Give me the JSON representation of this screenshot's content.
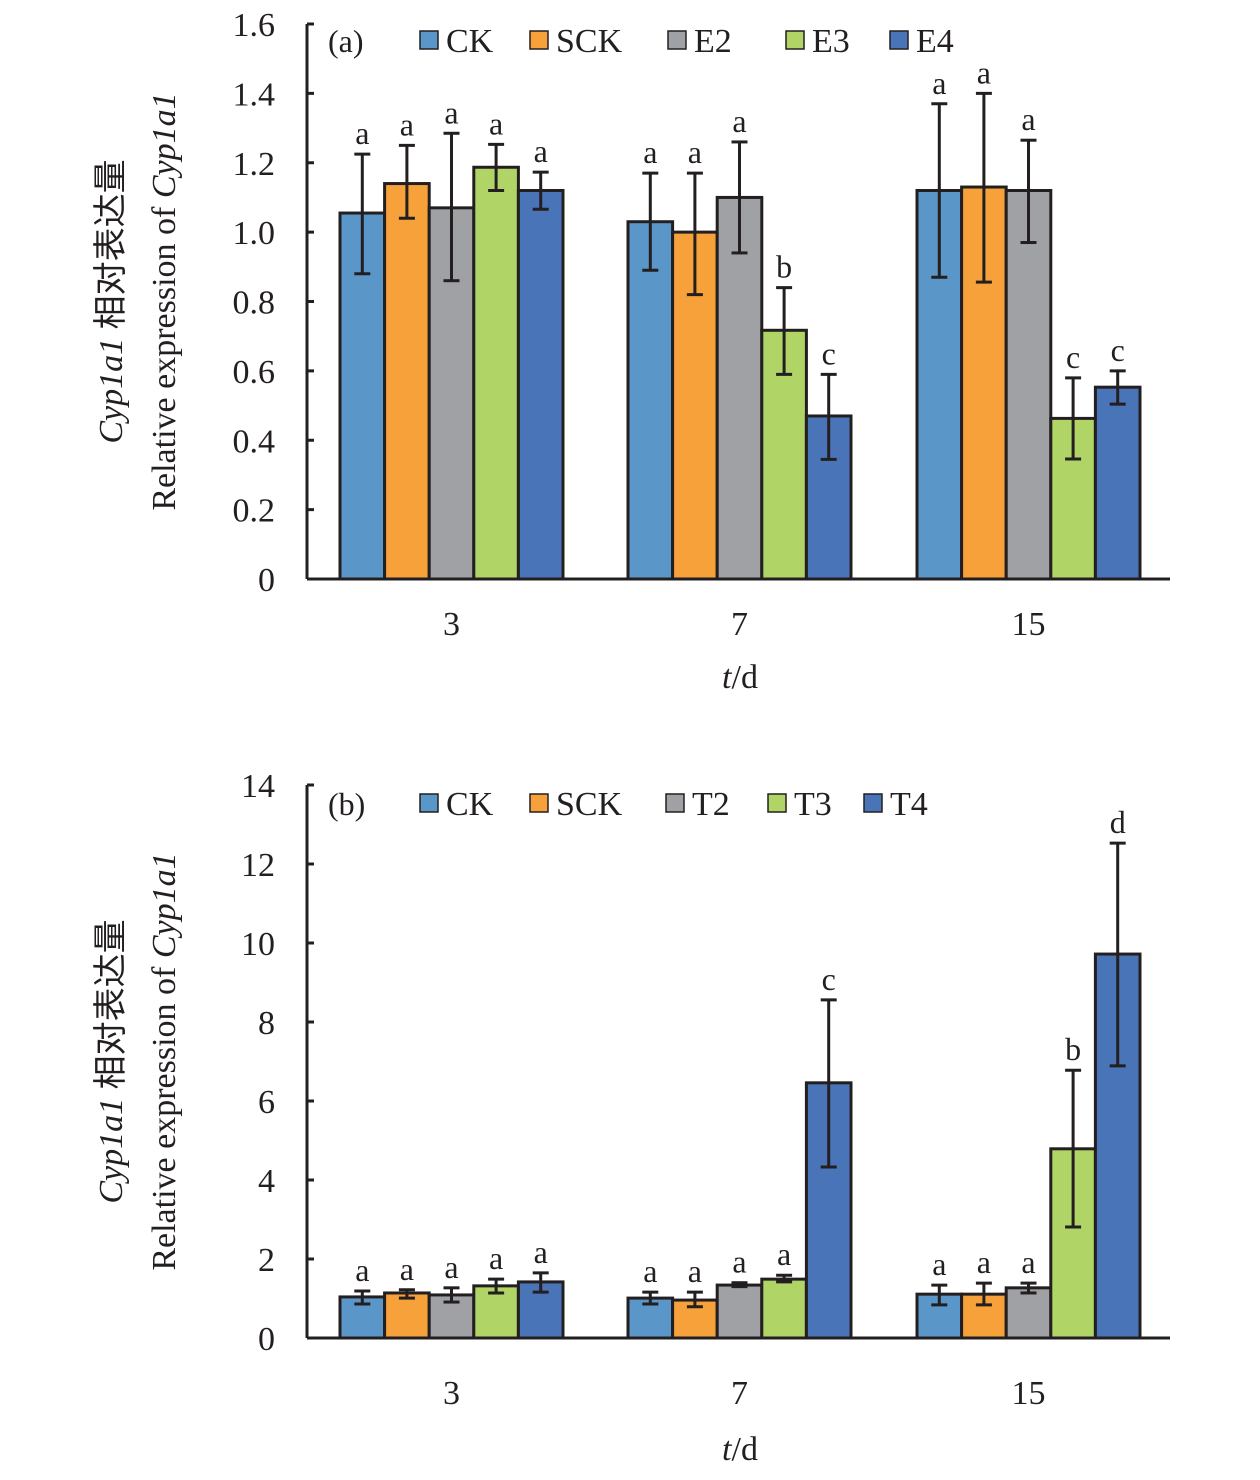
{
  "chart_data": [
    {
      "type": "bar",
      "panel_label": "(a)",
      "title": "",
      "xlabel_italic": "t",
      "xlabel_rest": "/d",
      "ylabel_line1_italic": "Cyp1a1",
      "ylabel_line1_rest": " 相对表达量",
      "ylabel_line2": "Relative expression of ",
      "ylabel_line2_italic": "Cyp1a1",
      "ylim": [
        0,
        1.6
      ],
      "yticks": [
        0,
        0.2,
        0.4,
        0.6,
        0.8,
        1.0,
        1.2,
        1.4,
        1.6
      ],
      "ytick_labels": [
        "0",
        "0.2",
        "0.4",
        "0.6",
        "0.8",
        "1.0",
        "1.2",
        "1.4",
        "1.6"
      ],
      "grid": false,
      "legend_position": "top",
      "categories": [
        "3",
        "7",
        "15"
      ],
      "series": [
        {
          "name": "CK",
          "color": "#5B96C8",
          "values": [
            1.055,
            1.03,
            1.12
          ],
          "err_low": [
            0.88,
            0.89,
            0.87
          ],
          "err_high": [
            1.225,
            1.17,
            1.37
          ],
          "letters": [
            "a",
            "a",
            "a"
          ]
        },
        {
          "name": "SCK",
          "color": "#F6A13A",
          "values": [
            1.14,
            1.0,
            1.13
          ],
          "err_low": [
            1.04,
            0.82,
            0.856
          ],
          "err_high": [
            1.25,
            1.17,
            1.4
          ],
          "letters": [
            "a",
            "a",
            "a"
          ]
        },
        {
          "name": "E2",
          "color": "#A0A1A5",
          "values": [
            1.07,
            1.1,
            1.12
          ],
          "err_low": [
            0.86,
            0.94,
            0.97
          ],
          "err_high": [
            1.285,
            1.26,
            1.265
          ],
          "letters": [
            "a",
            "a",
            "a"
          ]
        },
        {
          "name": "E3",
          "color": "#B0D465",
          "values": [
            1.187,
            0.717,
            0.463
          ],
          "err_low": [
            1.12,
            0.59,
            0.346
          ],
          "err_high": [
            1.253,
            0.84,
            0.58
          ],
          "letters": [
            "a",
            "b",
            "c"
          ]
        },
        {
          "name": "E4",
          "color": "#4A74B8",
          "values": [
            1.12,
            0.47,
            0.553
          ],
          "err_low": [
            1.066,
            0.345,
            0.504
          ],
          "err_high": [
            1.173,
            0.59,
            0.6
          ],
          "letters": [
            "a",
            "c",
            "c"
          ]
        }
      ]
    },
    {
      "type": "bar",
      "panel_label": "(b)",
      "title": "",
      "xlabel_italic": "t",
      "xlabel_rest": "/d",
      "ylabel_line1_italic": "Cyp1a1",
      "ylabel_line1_rest": " 相对表达量",
      "ylabel_line2": "Relative expression of ",
      "ylabel_line2_italic": "Cyp1a1",
      "ylim": [
        0,
        14
      ],
      "yticks": [
        0,
        2,
        4,
        6,
        8,
        10,
        12,
        14
      ],
      "ytick_labels": [
        "0",
        "2",
        "4",
        "6",
        "8",
        "10",
        "12",
        "14"
      ],
      "grid": false,
      "legend_position": "top",
      "categories": [
        "3",
        "7",
        "15"
      ],
      "series": [
        {
          "name": "CK",
          "color": "#5B96C8",
          "values": [
            1.04,
            1.01,
            1.11
          ],
          "err_low": [
            0.86,
            0.86,
            0.84
          ],
          "err_high": [
            1.19,
            1.16,
            1.34
          ],
          "letters": [
            "a",
            "a",
            "a"
          ]
        },
        {
          "name": "SCK",
          "color": "#F6A13A",
          "values": [
            1.14,
            0.96,
            1.11
          ],
          "err_low": [
            1.01,
            0.79,
            0.84
          ],
          "err_high": [
            1.22,
            1.16,
            1.39
          ],
          "letters": [
            "a",
            "a",
            "a"
          ]
        },
        {
          "name": "T2",
          "color": "#A0A1A5",
          "values": [
            1.09,
            1.34,
            1.27
          ],
          "err_low": [
            0.91,
            1.3,
            1.14
          ],
          "err_high": [
            1.27,
            1.4,
            1.39
          ],
          "letters": [
            "a",
            "a",
            "a"
          ]
        },
        {
          "name": "T3",
          "color": "#B0D465",
          "values": [
            1.32,
            1.49,
            4.79
          ],
          "err_low": [
            1.14,
            1.42,
            2.81
          ],
          "err_high": [
            1.49,
            1.59,
            6.78
          ],
          "letters": [
            "a",
            "a",
            "b"
          ]
        },
        {
          "name": "T4",
          "color": "#4A74B8",
          "values": [
            1.42,
            6.46,
            9.72
          ],
          "err_low": [
            1.16,
            4.33,
            6.89
          ],
          "err_high": [
            1.65,
            8.56,
            12.53
          ],
          "letters": [
            "a",
            "c",
            "d"
          ]
        }
      ]
    }
  ]
}
